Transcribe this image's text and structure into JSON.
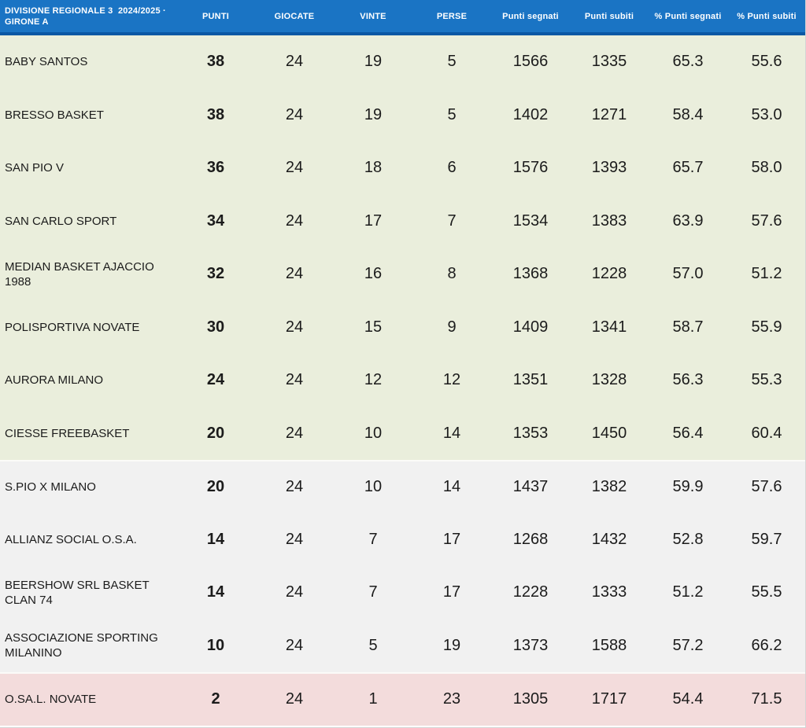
{
  "colors": {
    "header_bg": "#1a74c4",
    "header_border": "#0a57a4",
    "header_text": "#ffffff",
    "zone_safe_bg": "#eaeedc",
    "zone_neutral_bg": "#f1f1f1",
    "zone_relegation_bg": "#f3dcdc",
    "row_text": "#1b1b1b"
  },
  "header": {
    "title_line1": "DIVISIONE REGIONALE 3  2024/2025 ·",
    "title_line2": "GIRONE A",
    "columns": [
      "PUNTI",
      "GIOCATE",
      "VINTE",
      "PERSE",
      "Punti segnati",
      "Punti subiti",
      "% Punti segnati",
      "% Punti subiti"
    ]
  },
  "standings": {
    "rows": [
      {
        "team": "BABY SANTOS",
        "punti": "38",
        "giocate": "24",
        "vinte": "19",
        "perse": "5",
        "punti_segnati": "1566",
        "punti_subiti": "1335",
        "pct_punti_segnati": "65.3",
        "pct_punti_subiti": "55.6",
        "zone": "safe"
      },
      {
        "team": "BRESSO BASKET",
        "punti": "38",
        "giocate": "24",
        "vinte": "19",
        "perse": "5",
        "punti_segnati": "1402",
        "punti_subiti": "1271",
        "pct_punti_segnati": "58.4",
        "pct_punti_subiti": "53.0",
        "zone": "safe"
      },
      {
        "team": "SAN PIO V",
        "punti": "36",
        "giocate": "24",
        "vinte": "18",
        "perse": "6",
        "punti_segnati": "1576",
        "punti_subiti": "1393",
        "pct_punti_segnati": "65.7",
        "pct_punti_subiti": "58.0",
        "zone": "safe"
      },
      {
        "team": "SAN CARLO SPORT",
        "punti": "34",
        "giocate": "24",
        "vinte": "17",
        "perse": "7",
        "punti_segnati": "1534",
        "punti_subiti": "1383",
        "pct_punti_segnati": "63.9",
        "pct_punti_subiti": "57.6",
        "zone": "safe"
      },
      {
        "team": "MEDIAN BASKET AJACCIO 1988",
        "punti": "32",
        "giocate": "24",
        "vinte": "16",
        "perse": "8",
        "punti_segnati": "1368",
        "punti_subiti": "1228",
        "pct_punti_segnati": "57.0",
        "pct_punti_subiti": "51.2",
        "zone": "safe"
      },
      {
        "team": "POLISPORTIVA NOVATE",
        "punti": "30",
        "giocate": "24",
        "vinte": "15",
        "perse": "9",
        "punti_segnati": "1409",
        "punti_subiti": "1341",
        "pct_punti_segnati": "58.7",
        "pct_punti_subiti": "55.9",
        "zone": "safe"
      },
      {
        "team": "AURORA MILANO",
        "punti": "24",
        "giocate": "24",
        "vinte": "12",
        "perse": "12",
        "punti_segnati": "1351",
        "punti_subiti": "1328",
        "pct_punti_segnati": "56.3",
        "pct_punti_subiti": "55.3",
        "zone": "safe"
      },
      {
        "team": "CIESSE FREEBASKET",
        "punti": "20",
        "giocate": "24",
        "vinte": "10",
        "perse": "14",
        "punti_segnati": "1353",
        "punti_subiti": "1450",
        "pct_punti_segnati": "56.4",
        "pct_punti_subiti": "60.4",
        "zone": "safe"
      },
      {
        "team": "S.PIO X MILANO",
        "punti": "20",
        "giocate": "24",
        "vinte": "10",
        "perse": "14",
        "punti_segnati": "1437",
        "punti_subiti": "1382",
        "pct_punti_segnati": "59.9",
        "pct_punti_subiti": "57.6",
        "zone": "neutral"
      },
      {
        "team": "ALLIANZ SOCIAL O.S.A.",
        "punti": "14",
        "giocate": "24",
        "vinte": "7",
        "perse": "17",
        "punti_segnati": "1268",
        "punti_subiti": "1432",
        "pct_punti_segnati": "52.8",
        "pct_punti_subiti": "59.7",
        "zone": "neutral"
      },
      {
        "team": "BEERSHOW SRL BASKET CLAN 74",
        "punti": "14",
        "giocate": "24",
        "vinte": "7",
        "perse": "17",
        "punti_segnati": "1228",
        "punti_subiti": "1333",
        "pct_punti_segnati": "51.2",
        "pct_punti_subiti": "55.5",
        "zone": "neutral"
      },
      {
        "team": "ASSOCIAZIONE SPORTING MILANINO",
        "punti": "10",
        "giocate": "24",
        "vinte": "5",
        "perse": "19",
        "punti_segnati": "1373",
        "punti_subiti": "1588",
        "pct_punti_segnati": "57.2",
        "pct_punti_subiti": "66.2",
        "zone": "neutral"
      },
      {
        "team": "O.SA.L. NOVATE",
        "punti": "2",
        "giocate": "24",
        "vinte": "1",
        "perse": "23",
        "punti_segnati": "1305",
        "punti_subiti": "1717",
        "pct_punti_segnati": "54.4",
        "pct_punti_subiti": "71.5",
        "zone": "relegation"
      }
    ]
  }
}
